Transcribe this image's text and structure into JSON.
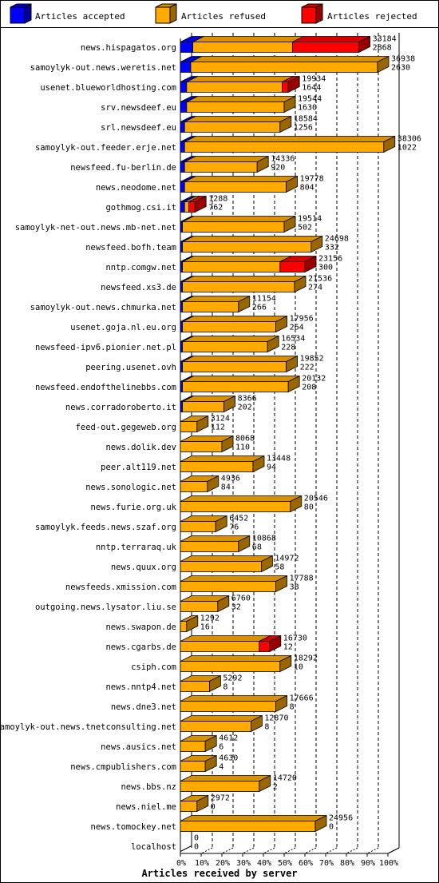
{
  "legend": {
    "accepted": {
      "label": "Articles accepted",
      "color": "#0000ff"
    },
    "refused": {
      "label": "Articles refused",
      "color": "#ffaa00"
    },
    "rejected": {
      "label": "Articles rejected",
      "color": "#ff0000"
    }
  },
  "chart_data": {
    "type": "bar",
    "orientation": "horizontal",
    "stacked": true,
    "three_d": true,
    "xlabel": "Articles received by server",
    "ylabel": "",
    "xlim": [
      0,
      100
    ],
    "x_unit": "%",
    "ticks": [
      "0%",
      "10%",
      "20%",
      "30%",
      "40%",
      "50%",
      "60%",
      "70%",
      "80%",
      "90%",
      "100%"
    ],
    "grid": "vertical dashed",
    "legend_position": "top",
    "series_order": [
      "accepted",
      "refused",
      "rejected"
    ],
    "rows": [
      {
        "server": "news.hispagatos.org",
        "accepted_pct": 6,
        "refused_pct": 48,
        "rejected_pct": 32,
        "total": "33184",
        "accepted": "2868"
      },
      {
        "server": "samoylyk-out.news.weretis.net",
        "accepted_pct": 5,
        "refused_pct": 90,
        "rejected_pct": 0,
        "total": "36938",
        "accepted": "2630"
      },
      {
        "server": "usenet.blueworldhosting.com",
        "accepted_pct": 3,
        "refused_pct": 46,
        "rejected_pct": 3,
        "total": "19934",
        "accepted": "1644"
      },
      {
        "server": "srv.newsdeef.eu",
        "accepted_pct": 3,
        "refused_pct": 47,
        "rejected_pct": 0,
        "total": "19544",
        "accepted": "1630"
      },
      {
        "server": "srl.newsdeef.eu",
        "accepted_pct": 2,
        "refused_pct": 46,
        "rejected_pct": 0,
        "total": "18584",
        "accepted": "1256"
      },
      {
        "server": "samoylyk-out.feeder.erje.net",
        "accepted_pct": 2,
        "refused_pct": 96,
        "rejected_pct": 0,
        "total": "38306",
        "accepted": "1022"
      },
      {
        "server": "newsfeed.fu-berlin.de",
        "accepted_pct": 2,
        "refused_pct": 35,
        "rejected_pct": 0,
        "total": "14336",
        "accepted": "920"
      },
      {
        "server": "news.neodome.net",
        "accepted_pct": 2,
        "refused_pct": 49,
        "rejected_pct": 0,
        "total": "19778",
        "accepted": "804"
      },
      {
        "server": "gothmog.csi.it",
        "accepted_pct": 2,
        "refused_pct": 2,
        "rejected_pct": 3,
        "total": "1288",
        "accepted": "762"
      },
      {
        "server": "samoylyk-net-out.news.mb-net.net",
        "accepted_pct": 1,
        "refused_pct": 49,
        "rejected_pct": 0,
        "total": "19514",
        "accepted": "502"
      },
      {
        "server": "newsfeed.bofh.team",
        "accepted_pct": 1,
        "refused_pct": 62,
        "rejected_pct": 0,
        "total": "24698",
        "accepted": "332"
      },
      {
        "server": "nntp.comgw.net",
        "accepted_pct": 1,
        "refused_pct": 47,
        "rejected_pct": 12,
        "total": "23156",
        "accepted": "300"
      },
      {
        "server": "newsfeed.xs3.de",
        "accepted_pct": 1,
        "refused_pct": 54,
        "rejected_pct": 0,
        "total": "21536",
        "accepted": "274"
      },
      {
        "server": "samoylyk-out.news.chmurka.net",
        "accepted_pct": 1,
        "refused_pct": 27,
        "rejected_pct": 0,
        "total": "11154",
        "accepted": "266"
      },
      {
        "server": "usenet.goja.nl.eu.org",
        "accepted_pct": 1,
        "refused_pct": 45,
        "rejected_pct": 0,
        "total": "17956",
        "accepted": "264"
      },
      {
        "server": "newsfeed-ipv6.pionier.net.pl",
        "accepted_pct": 1,
        "refused_pct": 41,
        "rejected_pct": 0,
        "total": "16534",
        "accepted": "228"
      },
      {
        "server": "peering.usenet.ovh",
        "accepted_pct": 1,
        "refused_pct": 50,
        "rejected_pct": 0,
        "total": "19852",
        "accepted": "222"
      },
      {
        "server": "newsfeed.endofthelinebbs.com",
        "accepted_pct": 1,
        "refused_pct": 51,
        "rejected_pct": 0,
        "total": "20132",
        "accepted": "208"
      },
      {
        "server": "news.corradoroberto.it",
        "accepted_pct": 1,
        "refused_pct": 20,
        "rejected_pct": 0,
        "total": "8366",
        "accepted": "202"
      },
      {
        "server": "feed-out.gegeweb.org",
        "accepted_pct": 0,
        "refused_pct": 8,
        "rejected_pct": 0,
        "total": "3124",
        "accepted": "112"
      },
      {
        "server": "news.dolik.dev",
        "accepted_pct": 0,
        "refused_pct": 20,
        "rejected_pct": 0,
        "total": "8068",
        "accepted": "110"
      },
      {
        "server": "peer.alt119.net",
        "accepted_pct": 0,
        "refused_pct": 35,
        "rejected_pct": 0,
        "total": "13448",
        "accepted": "94"
      },
      {
        "server": "news.sonologic.net",
        "accepted_pct": 0,
        "refused_pct": 13,
        "rejected_pct": 0,
        "total": "4936",
        "accepted": "84"
      },
      {
        "server": "news.furie.org.uk",
        "accepted_pct": 0,
        "refused_pct": 53,
        "rejected_pct": 0,
        "total": "20546",
        "accepted": "80"
      },
      {
        "server": "samoylyk.feeds.news.szaf.org",
        "accepted_pct": 0,
        "refused_pct": 17,
        "rejected_pct": 0,
        "total": "6452",
        "accepted": "76"
      },
      {
        "server": "nntp.terraraq.uk",
        "accepted_pct": 0,
        "refused_pct": 28,
        "rejected_pct": 0,
        "total": "10868",
        "accepted": "68"
      },
      {
        "server": "news.quux.org",
        "accepted_pct": 0,
        "refused_pct": 39,
        "rejected_pct": 0,
        "total": "14972",
        "accepted": "58"
      },
      {
        "server": "newsfeeds.xmission.com",
        "accepted_pct": 0,
        "refused_pct": 46,
        "rejected_pct": 0,
        "total": "17788",
        "accepted": "38"
      },
      {
        "server": "outgoing.news.lysator.liu.se",
        "accepted_pct": 0,
        "refused_pct": 18,
        "rejected_pct": 0,
        "total": "6760",
        "accepted": "32"
      },
      {
        "server": "news.swapon.de",
        "accepted_pct": 0,
        "refused_pct": 3,
        "rejected_pct": 0,
        "total": "1292",
        "accepted": "16"
      },
      {
        "server": "news.cgarbs.de",
        "accepted_pct": 0,
        "refused_pct": 38,
        "rejected_pct": 5,
        "total": "16730",
        "accepted": "12"
      },
      {
        "server": "csiph.com",
        "accepted_pct": 0,
        "refused_pct": 48,
        "rejected_pct": 0,
        "total": "18292",
        "accepted": "10"
      },
      {
        "server": "news.nntp4.net",
        "accepted_pct": 0,
        "refused_pct": 14,
        "rejected_pct": 0,
        "total": "5292",
        "accepted": "8"
      },
      {
        "server": "news.dne3.net",
        "accepted_pct": 0,
        "refused_pct": 46,
        "rejected_pct": 0,
        "total": "17666",
        "accepted": "8"
      },
      {
        "server": "samoylyk-out.news.tnetconsulting.net",
        "accepted_pct": 0,
        "refused_pct": 34,
        "rejected_pct": 0,
        "total": "12870",
        "accepted": "8"
      },
      {
        "server": "news.ausics.net",
        "accepted_pct": 0,
        "refused_pct": 12,
        "rejected_pct": 0,
        "total": "4612",
        "accepted": "6"
      },
      {
        "server": "news.cmpublishers.com",
        "accepted_pct": 0,
        "refused_pct": 12,
        "rejected_pct": 0,
        "total": "4630",
        "accepted": "4"
      },
      {
        "server": "news.bbs.nz",
        "accepted_pct": 0,
        "refused_pct": 38,
        "rejected_pct": 0,
        "total": "14720",
        "accepted": "2"
      },
      {
        "server": "news.niel.me",
        "accepted_pct": 0,
        "refused_pct": 8,
        "rejected_pct": 0,
        "total": "2972",
        "accepted": "0"
      },
      {
        "server": "news.tomockey.net",
        "accepted_pct": 0,
        "refused_pct": 65,
        "rejected_pct": 0,
        "total": "24956",
        "accepted": "0"
      },
      {
        "server": "localhost",
        "accepted_pct": 0,
        "refused_pct": 0,
        "rejected_pct": 0,
        "total": "0",
        "accepted": "0"
      }
    ]
  }
}
